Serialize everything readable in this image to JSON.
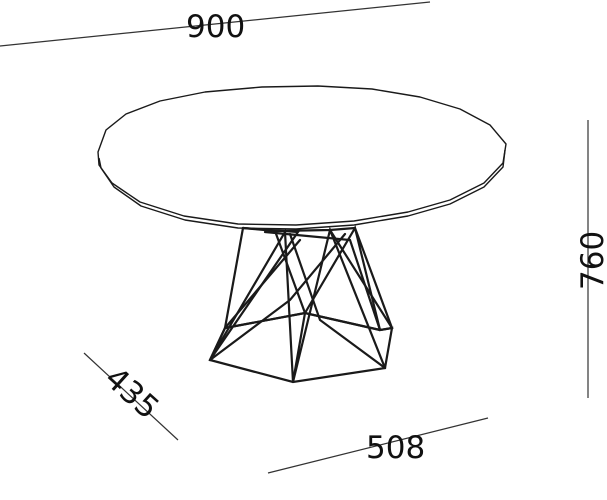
{
  "dimensions": {
    "top_width": "900",
    "height": "760",
    "base_depth": "435",
    "base_width": "508"
  }
}
